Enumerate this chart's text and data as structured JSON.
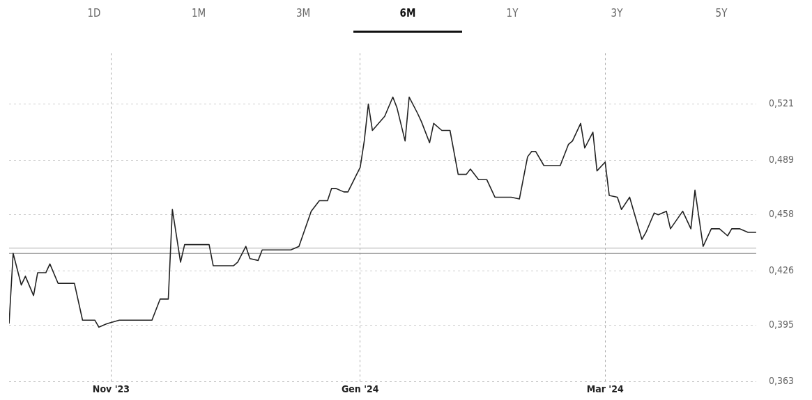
{
  "chart_data": {
    "type": "line",
    "annotations": [
      "1D",
      "1M",
      "3M",
      "6M",
      "1Y",
      "3Y",
      "5Y"
    ],
    "x": [
      "2023-10-07",
      "2023-10-08",
      "2023-10-10",
      "2023-10-11",
      "2023-10-13",
      "2023-10-14",
      "2023-10-16",
      "2023-10-17",
      "2023-10-19",
      "2023-10-23",
      "2023-10-25",
      "2023-10-28",
      "2023-10-29",
      "2023-10-31",
      "2023-11-03",
      "2023-11-11",
      "2023-11-13",
      "2023-11-15",
      "2023-11-16",
      "2023-11-18",
      "2023-11-19",
      "2023-11-25",
      "2023-11-26",
      "2023-12-01",
      "2023-12-02",
      "2023-12-04",
      "2023-12-05",
      "2023-12-07",
      "2023-12-08",
      "2023-12-15",
      "2023-12-17",
      "2023-12-20",
      "2023-12-22",
      "2023-12-24",
      "2023-12-25",
      "2023-12-26",
      "2023-12-28",
      "2023-12-29",
      "2024-01-01",
      "2024-01-02",
      "2024-01-03",
      "2024-01-04",
      "2024-01-07",
      "2024-01-09",
      "2024-01-10",
      "2024-01-12",
      "2024-01-13",
      "2024-01-15",
      "2024-01-16",
      "2024-01-18",
      "2024-01-19",
      "2024-01-21",
      "2024-01-23",
      "2024-01-25",
      "2024-01-27",
      "2024-01-28",
      "2024-01-30",
      "2024-02-01",
      "2024-02-03",
      "2024-02-07",
      "2024-02-09",
      "2024-02-11",
      "2024-02-12",
      "2024-02-13",
      "2024-02-15",
      "2024-02-19",
      "2024-02-21",
      "2024-02-22",
      "2024-02-24",
      "2024-02-25",
      "2024-02-27",
      "2024-02-28",
      "2024-03-01",
      "2024-03-02",
      "2024-03-04",
      "2024-03-05",
      "2024-03-07",
      "2024-03-08",
      "2024-03-10",
      "2024-03-11",
      "2024-03-13",
      "2024-03-14",
      "2024-03-16",
      "2024-03-17",
      "2024-03-20",
      "2024-03-22",
      "2024-03-23",
      "2024-03-25",
      "2024-03-27",
      "2024-03-29",
      "2024-03-31",
      "2024-04-01",
      "2024-04-03",
      "2024-04-05",
      "2024-04-07"
    ],
    "series": [
      {
        "color": "#222222",
        "values": [
          0.396,
          0.436,
          0.418,
          0.423,
          0.412,
          0.425,
          0.425,
          0.43,
          0.419,
          0.419,
          0.398,
          0.398,
          0.394,
          0.396,
          0.398,
          0.398,
          0.41,
          0.41,
          0.461,
          0.431,
          0.441,
          0.441,
          0.429,
          0.429,
          0.431,
          0.44,
          0.433,
          0.432,
          0.438,
          0.438,
          0.44,
          0.46,
          0.466,
          0.466,
          0.473,
          0.473,
          0.471,
          0.471,
          0.485,
          0.5,
          0.521,
          0.506,
          0.514,
          0.525,
          0.519,
          0.5,
          0.525,
          0.516,
          0.511,
          0.499,
          0.51,
          0.506,
          0.506,
          0.481,
          0.481,
          0.484,
          0.478,
          0.478,
          0.468,
          0.468,
          0.467,
          0.491,
          0.494,
          0.494,
          0.486,
          0.486,
          0.498,
          0.5,
          0.51,
          0.496,
          0.505,
          0.483,
          0.488,
          0.469,
          0.468,
          0.461,
          0.468,
          0.46,
          0.444,
          0.448,
          0.459,
          0.458,
          0.46,
          0.45,
          0.46,
          0.45,
          0.472,
          0.44,
          0.45,
          0.45,
          0.446,
          0.45,
          0.45,
          0.448,
          0.448
        ]
      }
    ],
    "xlim": [
      "2023-10-07",
      "2024-04-07"
    ],
    "xticks": [
      {
        "value": "2023-11-01",
        "label": "Nov '23"
      },
      {
        "value": "2024-01-01",
        "label": "Gen '24"
      },
      {
        "value": "2024-03-01",
        "label": "Mar '24"
      }
    ],
    "ylim": [
      0.363,
      0.55
    ],
    "yticks": [
      {
        "value": 0.363,
        "label": "0,363"
      },
      {
        "value": 0.395,
        "label": "0,395"
      },
      {
        "value": 0.426,
        "label": "0,426"
      },
      {
        "value": 0.458,
        "label": "0,458"
      },
      {
        "value": 0.489,
        "label": "0,489"
      },
      {
        "value": 0.521,
        "label": "0,521"
      }
    ],
    "ref_lines": [
      {
        "axis": "y",
        "value": 0.439,
        "color": "#bbbbbb"
      },
      {
        "axis": "y",
        "value": 0.436,
        "color": "#888888"
      }
    ],
    "grid": true,
    "legend": false,
    "marker": "none"
  }
}
